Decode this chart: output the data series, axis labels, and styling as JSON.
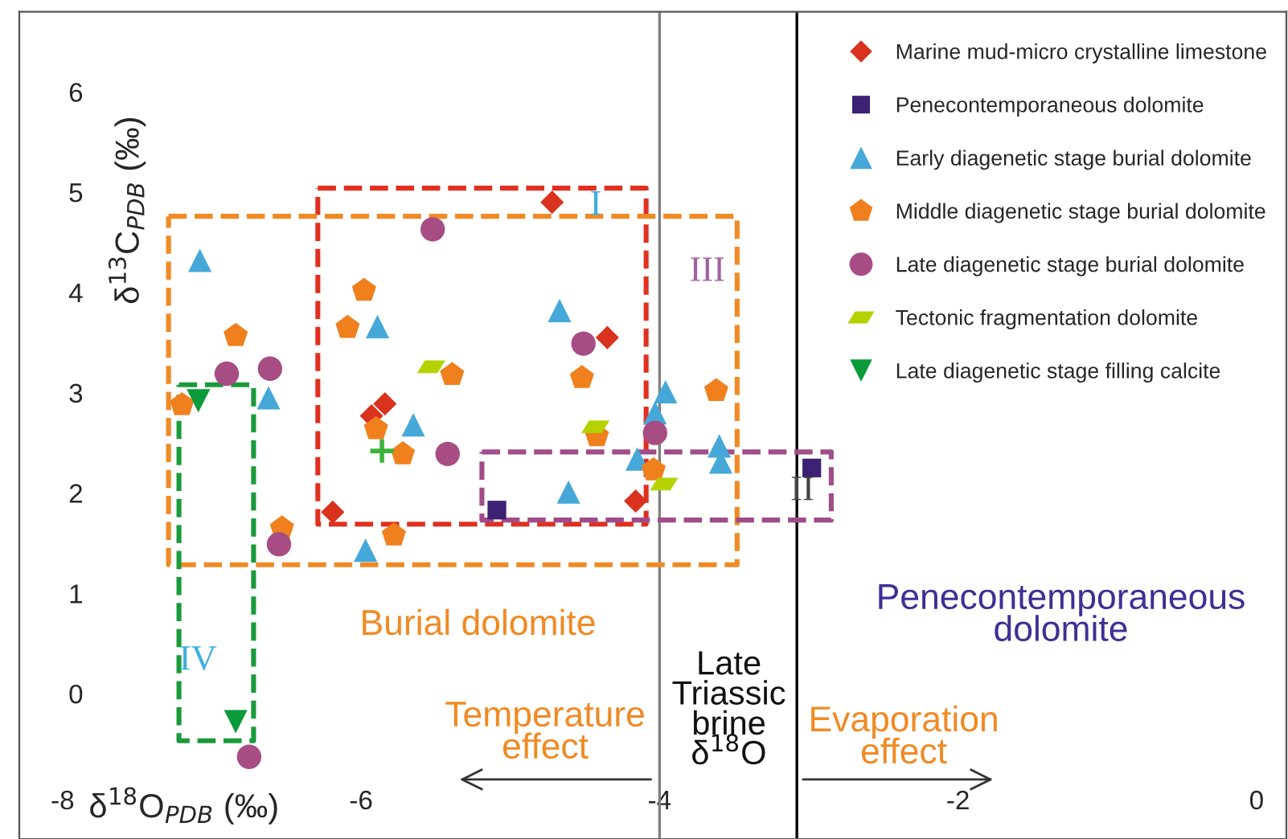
{
  "chart_data": {
    "type": "scatter",
    "xlabel": "δ$^{18}$O$_{PDB}$ (‰)",
    "ylabel": "δ$^{13}$C$_{PDB}$ (‰)",
    "xlim": [
      -8.29,
      0.2
    ],
    "ylim": [
      -1.45,
      6.8
    ],
    "xticks": [
      -8,
      -6,
      -4,
      -2,
      0
    ],
    "yticks": [
      0,
      1,
      2,
      3,
      4,
      5,
      6
    ],
    "grid": false,
    "legend": "top right",
    "series": [
      {
        "name": "Marine mud-micro crystalline limestone",
        "color": "#d9321e",
        "marker": "diamond",
        "x": [
          -4.72,
          -4.35,
          -5.84,
          -5.93,
          -6.19,
          -4.16
        ],
        "values": [
          4.9,
          3.55,
          2.89,
          2.77,
          1.81,
          1.92
        ]
      },
      {
        "name": "Penecontemporaneous dolomite",
        "color": "#3d2173",
        "marker": "square",
        "x": [
          -5.09,
          -2.98
        ],
        "values": [
          1.83,
          2.25
        ]
      },
      {
        "name": "Early diagenetic stage burial dolomite",
        "color": "#46a8d8",
        "marker": "triangle",
        "x": [
          -7.08,
          -4.67,
          -5.89,
          -6.62,
          -5.65,
          -4.61,
          -5.97,
          -4.15,
          -3.96,
          -4.03,
          -3.6,
          -3.59
        ],
        "values": [
          4.32,
          3.82,
          3.66,
          2.95,
          2.68,
          2.01,
          1.43,
          2.34,
          3.01,
          2.8,
          2.47,
          2.31
        ]
      },
      {
        "name": "Middle diagenetic stage burial dolomite",
        "color": "#f0801e",
        "x": [
          -5.98,
          -6.09,
          -6.84,
          -5.39,
          -4.52,
          -7.2,
          -5.9,
          -5.72,
          -4.42,
          -4.04,
          -6.53,
          -5.78,
          -3.62
        ],
        "values": [
          4.02,
          3.65,
          3.57,
          3.18,
          3.15,
          2.88,
          2.64,
          2.39,
          2.57,
          2.23,
          1.65,
          1.58,
          3.02
        ]
      },
      {
        "name": "Late diagenetic stage burial dolomite",
        "color": "#a84c84",
        "marker": "circle",
        "x": [
          -5.52,
          -4.51,
          -6.9,
          -6.61,
          -5.42,
          -4.03,
          -6.55,
          -6.75
        ],
        "values": [
          4.63,
          3.49,
          3.19,
          3.24,
          2.39,
          2.6,
          1.49,
          -0.63
        ]
      },
      {
        "name": "Tectonic fragmentation dolomite",
        "color": "#b5d100",
        "x": [
          -5.53,
          -4.43,
          -3.97
        ],
        "values": [
          3.26,
          2.66,
          2.09
        ]
      },
      {
        "name": "Late diagenetic stage filling calcite",
        "color": "#0a9a3a",
        "marker": "triangle_down",
        "x": [
          -7.09,
          -6.84
        ],
        "values": [
          2.92,
          -0.28
        ]
      },
      {
        "color": "#3cb43c",
        "marker": "cross",
        "x": [
          -5.86
        ],
        "values": [
          2.42
        ]
      }
    ],
    "ref_lines": [
      {
        "axis": "x",
        "value": -4,
        "color": "#808080"
      },
      {
        "axis": "x",
        "value": -3.08,
        "color": "#000000"
      }
    ],
    "annotations": [
      "I",
      "II",
      "III",
      "IV",
      "Burial dolomite",
      "Temperature\neffect",
      "Late\nTriassic\nbrine\nδ$^{18}$O",
      "Evaporation\neffect",
      "Penecontemporaneous\ndolomite"
    ]
  }
}
